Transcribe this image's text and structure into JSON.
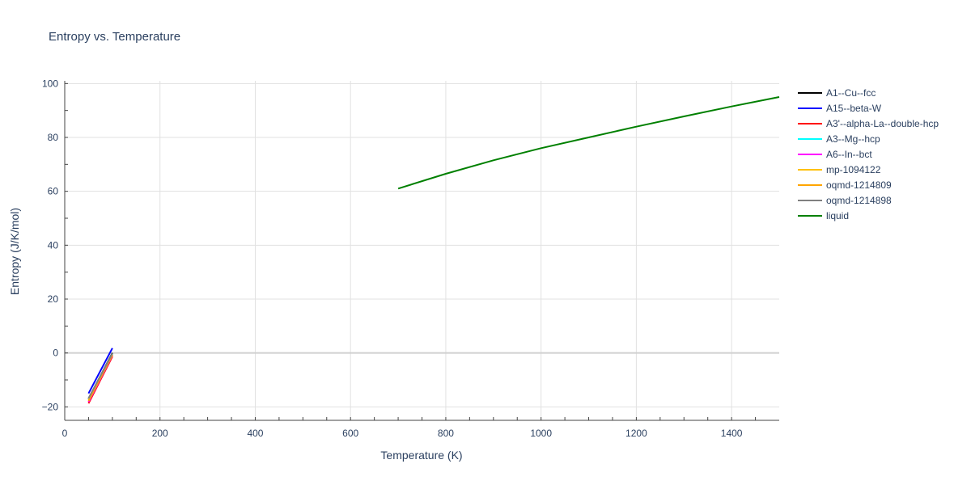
{
  "chart_data": {
    "type": "line",
    "title": "Entropy vs. Temperature",
    "xlabel": "Temperature (K)",
    "ylabel": "Entropy (J/K/mol)",
    "xlim": [
      0,
      1500
    ],
    "ylim": [
      -25,
      101
    ],
    "xticks": [
      0,
      200,
      400,
      600,
      800,
      1000,
      1200,
      1400
    ],
    "yticks": [
      -20,
      0,
      20,
      40,
      60,
      80,
      100
    ],
    "grid": true,
    "legend_position": "right",
    "series": [
      {
        "name": "A1--Cu--fcc",
        "color": "#000000",
        "x": [
          50,
          100
        ],
        "y": [
          -17.0,
          0.0
        ]
      },
      {
        "name": "A15--beta-W",
        "color": "#0000ff",
        "x": [
          50,
          100
        ],
        "y": [
          -15.0,
          1.8
        ]
      },
      {
        "name": "A3'--alpha-La--double-hcp",
        "color": "#ff0000",
        "x": [
          50,
          100
        ],
        "y": [
          -18.7,
          -1.3
        ]
      },
      {
        "name": "A3--Mg--hcp",
        "color": "#00ffff",
        "x": [
          50,
          100
        ],
        "y": [
          -17.2,
          -0.4
        ]
      },
      {
        "name": "A6--In--bct",
        "color": "#ff00ff",
        "x": [
          50,
          100
        ],
        "y": [
          -18.2,
          -0.9
        ]
      },
      {
        "name": "mp-1094122",
        "color": "#ffc107",
        "x": [
          50,
          100
        ],
        "y": [
          -17.5,
          -0.6
        ]
      },
      {
        "name": "oqmd-1214809",
        "color": "#ffa500",
        "x": [
          50,
          100
        ],
        "y": [
          -17.8,
          -0.7
        ]
      },
      {
        "name": "oqmd-1214898",
        "color": "#808080",
        "x": [
          50,
          100
        ],
        "y": [
          -16.8,
          -0.2
        ]
      },
      {
        "name": "liquid",
        "color": "#008000",
        "x": [
          700,
          800,
          900,
          1000,
          1100,
          1200,
          1300,
          1400,
          1500
        ],
        "y": [
          61.0,
          66.5,
          71.5,
          76.0,
          80.0,
          84.0,
          87.8,
          91.5,
          95.0
        ]
      }
    ]
  }
}
